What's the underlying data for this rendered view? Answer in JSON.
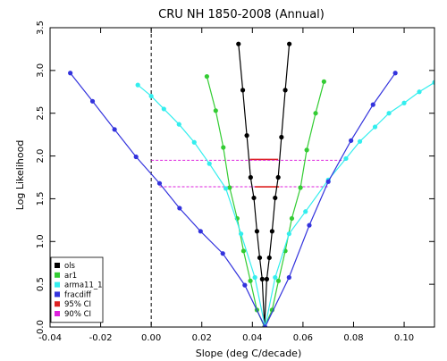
{
  "chart_data": {
    "type": "line",
    "title": "CRU NH 1850-2008 (Annual)",
    "xlabel": "Slope (deg C/decade)",
    "ylabel": "Log Likelihood",
    "xlim": [
      -0.04,
      0.112
    ],
    "ylim": [
      0,
      3.5
    ],
    "xticks": [
      -0.04,
      -0.02,
      0.0,
      0.02,
      0.04,
      0.06,
      0.08,
      0.1
    ],
    "xtick_labels": [
      "-0.04",
      "-0.02",
      "0.00",
      "0.02",
      "0.04",
      "0.06",
      "0.08",
      "0.10"
    ],
    "yticks": [
      0,
      0.5,
      1.0,
      1.5,
      2.0,
      2.5,
      3.0,
      3.5
    ],
    "ytick_labels": [
      "0.0",
      "0.5",
      "1.0",
      "1.5",
      "2.0",
      "2.5",
      "3.0",
      "3.5"
    ],
    "zero_line_x": 0.0,
    "grid": false,
    "legend_position": "bottom-left",
    "series": [
      {
        "name": "ols",
        "color": "#000000",
        "x": [
          0.0345,
          0.0362,
          0.0378,
          0.0393,
          0.0406,
          0.0418,
          0.0429,
          0.0439,
          0.0448,
          0.0457,
          0.0467,
          0.0478,
          0.049,
          0.0502,
          0.0515,
          0.053,
          0.0546
        ],
        "y": [
          3.31,
          2.77,
          2.24,
          1.75,
          1.51,
          1.12,
          0.81,
          0.56,
          0.0,
          0.56,
          0.81,
          1.12,
          1.51,
          1.75,
          2.22,
          2.77,
          3.31
        ]
      },
      {
        "name": "ar1",
        "color": "#33cc33",
        "x": [
          0.022,
          0.0255,
          0.0285,
          0.031,
          0.034,
          0.0365,
          0.0392,
          0.0418,
          0.0448,
          0.0478,
          0.0503,
          0.053,
          0.0556,
          0.059,
          0.0615,
          0.065,
          0.0683
        ],
        "y": [
          2.93,
          2.53,
          2.1,
          1.63,
          1.27,
          0.89,
          0.54,
          0.2,
          0.0,
          0.2,
          0.54,
          0.89,
          1.27,
          1.63,
          2.07,
          2.5,
          2.87
        ]
      },
      {
        "name": "arma11_1",
        "color": "#33eeee",
        "x": [
          -0.0053,
          0.0,
          0.005,
          0.011,
          0.017,
          0.023,
          0.0295,
          0.0355,
          0.041,
          0.045,
          0.049,
          0.0545,
          0.061,
          0.07,
          0.077,
          0.0825,
          0.0885,
          0.094,
          0.1,
          0.106,
          0.112
        ],
        "y": [
          2.83,
          2.7,
          2.55,
          2.37,
          2.16,
          1.91,
          1.62,
          1.09,
          0.58,
          0.0,
          0.58,
          1.09,
          1.35,
          1.72,
          1.97,
          2.17,
          2.34,
          2.5,
          2.62,
          2.75,
          2.86
        ]
      },
      {
        "name": "fracdiff",
        "color": "#3333dd",
        "x": [
          -0.032,
          -0.0232,
          -0.0145,
          -0.006,
          0.0033,
          0.0112,
          0.0195,
          0.0283,
          0.037,
          0.045,
          0.0545,
          0.0625,
          0.07,
          0.079,
          0.0877,
          0.0965
        ],
        "y": [
          2.97,
          2.64,
          2.31,
          1.99,
          1.68,
          1.39,
          1.12,
          0.86,
          0.49,
          0.0,
          0.58,
          1.19,
          1.7,
          2.18,
          2.6,
          2.97
        ]
      }
    ],
    "confidence_intervals": [
      {
        "name": "95% CI",
        "color": "#dd2222",
        "x_range": [
          0.039,
          0.0502
        ],
        "y": 1.96
      },
      {
        "name": "90% CI",
        "color": "#dd22dd",
        "x_range": [
          0.0,
          0.077
        ],
        "y": 1.95,
        "dashed": true
      },
      {
        "name": "90% CI",
        "color": "#dd22dd",
        "x_range": [
          0.0033,
          0.07
        ],
        "y": 1.64,
        "dashed": true
      },
      {
        "name": "95% CI",
        "color": "#dd2222",
        "x_range": [
          0.041,
          0.0506
        ],
        "y": 1.64
      }
    ],
    "legend": [
      {
        "label": "ols",
        "color": "#000000"
      },
      {
        "label": "ar1",
        "color": "#33cc33"
      },
      {
        "label": "arma11_1",
        "color": "#33eeee"
      },
      {
        "label": "fracdiff",
        "color": "#3333dd"
      },
      {
        "label": "95% CI",
        "color": "#dd2222"
      },
      {
        "label": "90% CI",
        "color": "#dd22dd"
      }
    ]
  }
}
